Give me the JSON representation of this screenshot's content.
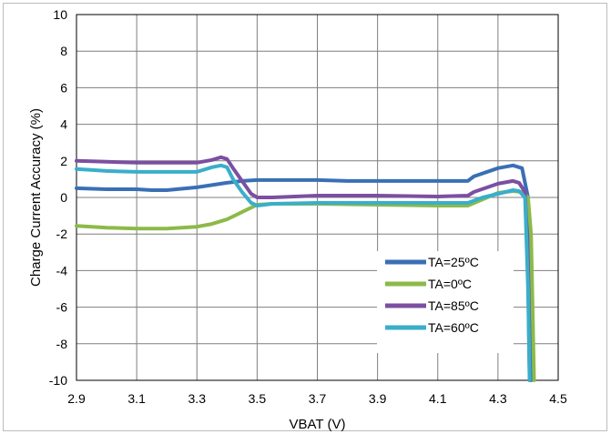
{
  "chart_data": {
    "type": "line",
    "xlabel": "VBAT (V)",
    "ylabel": "Charge Current Accuracy (%)",
    "xlim": [
      2.9,
      4.5
    ],
    "ylim": [
      -10,
      10
    ],
    "xticks": [
      "2.9",
      "3.1",
      "3.3",
      "3.5",
      "3.7",
      "3.9",
      "4.1",
      "4.3",
      "4.5"
    ],
    "yticks": [
      "10",
      "8",
      "6",
      "4",
      "2",
      "0",
      "-2",
      "-4",
      "-6",
      "-8",
      "-10"
    ],
    "grid": true,
    "legend_position": "lower-right",
    "series": [
      {
        "name": "TA=25ºC",
        "color": "#3a6fb5",
        "x": [
          2.9,
          3.0,
          3.1,
          3.15,
          3.2,
          3.3,
          3.4,
          3.45,
          3.5,
          3.6,
          3.7,
          3.8,
          3.9,
          4.0,
          4.1,
          4.2,
          4.22,
          4.3,
          4.35,
          4.38,
          4.4,
          4.405,
          4.41
        ],
        "y": [
          0.5,
          0.45,
          0.45,
          0.4,
          0.4,
          0.55,
          0.8,
          0.9,
          0.95,
          0.95,
          0.95,
          0.9,
          0.9,
          0.9,
          0.9,
          0.9,
          1.15,
          1.6,
          1.75,
          1.6,
          0.0,
          -5.0,
          -10.0
        ]
      },
      {
        "name": "TA=0ºC",
        "color": "#8cba48",
        "x": [
          2.9,
          3.0,
          3.1,
          3.2,
          3.3,
          3.35,
          3.4,
          3.45,
          3.5,
          3.55,
          3.7,
          3.9,
          4.1,
          4.2,
          4.25,
          4.3,
          4.35,
          4.38,
          4.4,
          4.41,
          4.415,
          4.42
        ],
        "y": [
          -1.55,
          -1.65,
          -1.7,
          -1.7,
          -1.6,
          -1.45,
          -1.2,
          -0.8,
          -0.4,
          -0.35,
          -0.35,
          -0.4,
          -0.45,
          -0.45,
          -0.1,
          0.25,
          0.35,
          0.3,
          0.0,
          -2.0,
          -6.0,
          -10.0
        ]
      },
      {
        "name": "TA=85ºC",
        "color": "#7c4fa1",
        "x": [
          2.9,
          3.0,
          3.1,
          3.2,
          3.3,
          3.35,
          3.38,
          3.4,
          3.42,
          3.45,
          3.48,
          3.5,
          3.55,
          3.7,
          3.9,
          4.1,
          4.2,
          4.22,
          4.3,
          4.35,
          4.37,
          4.39,
          4.4,
          4.405
        ],
        "y": [
          2.0,
          1.95,
          1.9,
          1.9,
          1.9,
          2.05,
          2.2,
          2.1,
          1.6,
          0.9,
          0.2,
          0.0,
          0.0,
          0.1,
          0.1,
          0.05,
          0.1,
          0.3,
          0.75,
          0.9,
          0.8,
          0.3,
          -4.0,
          -10.0
        ]
      },
      {
        "name": "TA=60ºC",
        "color": "#3aaecb",
        "x": [
          2.9,
          3.0,
          3.1,
          3.2,
          3.3,
          3.35,
          3.38,
          3.4,
          3.42,
          3.45,
          3.48,
          3.5,
          3.55,
          3.7,
          3.9,
          4.1,
          4.2,
          4.25,
          4.3,
          4.35,
          4.37,
          4.39,
          4.4,
          4.405
        ],
        "y": [
          1.55,
          1.45,
          1.4,
          1.4,
          1.4,
          1.65,
          1.75,
          1.65,
          1.0,
          0.3,
          -0.3,
          -0.45,
          -0.35,
          -0.3,
          -0.3,
          -0.3,
          -0.3,
          0.0,
          0.2,
          0.4,
          0.35,
          0.0,
          -5.0,
          -10.0
        ]
      }
    ]
  }
}
